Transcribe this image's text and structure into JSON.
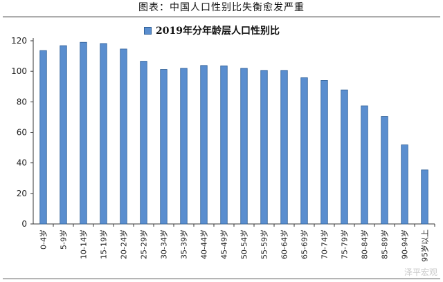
{
  "page_title": "图表：中国人口性别比失衡愈发严重",
  "watermark": "泽平宏观",
  "colors": {
    "bar_fill": "#5a8ecf",
    "bar_stroke": "#2f5f96",
    "axis": "#333333"
  },
  "chart_data": {
    "type": "bar",
    "title": "2019年分年龄层人口性别比",
    "legend": [
      "2019年分年龄层人口性别比"
    ],
    "legend_position": "top-center",
    "xlabel": "",
    "ylabel": "",
    "ylim": [
      0,
      120
    ],
    "yticks": [
      0,
      20,
      40,
      60,
      80,
      100,
      120
    ],
    "grid": false,
    "categories": [
      "0-4岁",
      "5-9岁",
      "10-14岁",
      "15-19岁",
      "20-24岁",
      "25-29岁",
      "30-34岁",
      "35-39岁",
      "40-44岁",
      "45-49岁",
      "50-54岁",
      "55-59岁",
      "60-64岁",
      "65-69岁",
      "70-74岁",
      "75-79岁",
      "80-84岁",
      "85-89岁",
      "90-94岁",
      "95岁以上"
    ],
    "values": [
      113.6,
      116.8,
      119.0,
      118.2,
      114.6,
      106.6,
      101.2,
      102.0,
      103.8,
      103.6,
      102.0,
      100.6,
      100.6,
      95.8,
      94.0,
      87.8,
      77.4,
      70.4,
      51.8,
      35.4
    ]
  }
}
